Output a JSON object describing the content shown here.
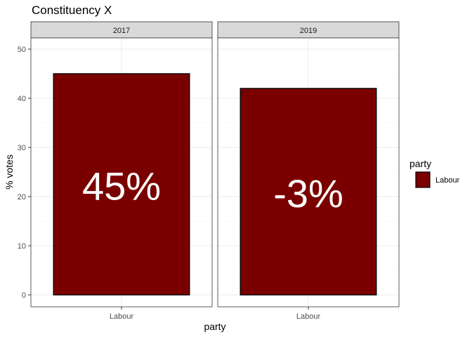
{
  "chart_data": {
    "type": "bar",
    "title": "Constituency X",
    "xlabel": "party",
    "ylabel": "% votes",
    "ylim": [
      0,
      52
    ],
    "yticks": [
      0,
      10,
      20,
      30,
      40,
      50
    ],
    "grid": true,
    "legend": {
      "position": "right",
      "title": "party",
      "items": [
        {
          "label": "Labour",
          "color": "#7a0000"
        }
      ]
    },
    "facets": [
      {
        "label": "2017",
        "categories": [
          "Labour"
        ],
        "values": [
          45
        ],
        "bar_labels": [
          "45%"
        ],
        "fills": [
          "#7a0000"
        ]
      },
      {
        "label": "2019",
        "categories": [
          "Labour"
        ],
        "values": [
          42
        ],
        "bar_labels": [
          "-3%"
        ],
        "fills": [
          "#7a0000"
        ]
      }
    ]
  }
}
